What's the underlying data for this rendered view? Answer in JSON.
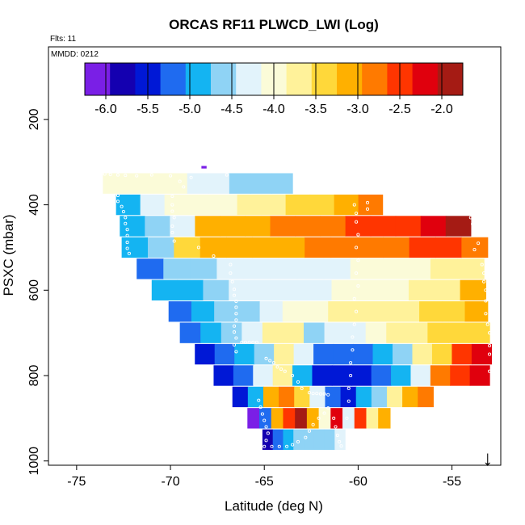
{
  "chart_data": {
    "type": "heatmap",
    "title": "ORCAS RF11 PLWCD_LWI (Log)",
    "flights_label": "Flts: 11",
    "date_label": "MMDD: 0212",
    "xlabel": "Latitude (deg N)",
    "ylabel": "PSXC (mbar)",
    "xlim": [
      -76.5,
      -52.4
    ],
    "ylim": [
      1010,
      30
    ],
    "x_ticks": [
      -75,
      -70,
      -65,
      -60,
      -55
    ],
    "x_tick_labels": [
      "-75",
      "-70",
      "-65",
      "-60",
      "-55"
    ],
    "y_ticks": [
      200,
      400,
      600,
      800,
      1000
    ],
    "y_tick_labels": [
      "200",
      "400",
      "600",
      "800",
      "1000"
    ],
    "colorbar": {
      "min": -6.25,
      "max": -1.75,
      "ticks": [
        -6.0,
        -5.5,
        -5.0,
        -4.5,
        -4.0,
        -3.5,
        -3.0,
        -2.5,
        -2.0
      ],
      "tick_labels": [
        "-6.0",
        "-5.5",
        "-5.0",
        "-4.5",
        "-4.0",
        "-3.5",
        "-3.0",
        "-2.5",
        "-2.0"
      ],
      "colors": [
        "#7a1fe6",
        "#1400b0",
        "#0018d6",
        "#1f6bf0",
        "#14b4f2",
        "#8fd3f5",
        "#e2f3fb",
        "#fbfbd8",
        "#fff29a",
        "#ffd83a",
        "#ffb000",
        "#ff7a00",
        "#ff3500",
        "#e0000d",
        "#a51b14"
      ]
    },
    "bands": [
      {
        "p": 312,
        "dp": 6,
        "lat_start": -68.35,
        "lat_end": -68.1,
        "values": [
          -6.2
        ]
      },
      {
        "p": 350,
        "dp": 48,
        "lat_start": -73.6,
        "lat_end": -63.5,
        "values": [
          -4.0,
          -3.9,
          -4.0,
          -4.1,
          -4.2,
          -4.3,
          -4.5,
          -4.6,
          -4.7
        ]
      },
      {
        "p": 400,
        "dp": 48,
        "lat_start": -72.9,
        "lat_end": -58.7,
        "values": [
          -4.8,
          -4.3,
          -4.1,
          -4.0,
          -3.9,
          -3.8,
          -3.7,
          -3.5,
          -3.3,
          -3.1,
          -2.9
        ]
      },
      {
        "p": 450,
        "dp": 48,
        "lat_start": -72.7,
        "lat_end": -54.0,
        "values": [
          -5.0,
          -4.6,
          -4.3,
          -3.2,
          -3.0,
          -3.0,
          -2.9,
          -2.8,
          -2.7,
          -2.6,
          -2.5,
          -2.4,
          -2.2,
          -2.0
        ]
      },
      {
        "p": 500,
        "dp": 48,
        "lat_start": -72.6,
        "lat_end": -53.1,
        "values": [
          -5.0,
          -4.6,
          -3.4,
          -3.2,
          -3.1,
          -3.0,
          -3.0,
          -2.9,
          -2.8,
          -2.7,
          -2.7,
          -2.6,
          -2.6,
          -2.7
        ]
      },
      {
        "p": 550,
        "dp": 48,
        "lat_start": -71.8,
        "lat_end": -53.3,
        "values": [
          -5.2,
          -4.6,
          -4.5,
          -4.4,
          -4.3,
          -4.3,
          -4.2,
          -4.2,
          -4.1,
          -4.0,
          -3.9,
          -3.8,
          -3.8
        ]
      },
      {
        "p": 600,
        "dp": 48,
        "lat_start": -71.0,
        "lat_end": -53.2,
        "values": [
          -5.0,
          -4.8,
          -4.5,
          -4.4,
          -4.4,
          -4.3,
          -4.2,
          -4.1,
          -4.0,
          -3.9,
          -3.8,
          -3.6,
          -3.2
        ]
      },
      {
        "p": 650,
        "dp": 48,
        "lat_start": -70.1,
        "lat_end": -53.1,
        "values": [
          -5.2,
          -4.9,
          -4.6,
          -4.5,
          -4.3,
          -4.1,
          -3.9,
          -3.8,
          -3.7,
          -3.6,
          -3.6,
          -3.4,
          -3.3,
          -3.0
        ]
      },
      {
        "p": 700,
        "dp": 48,
        "lat_start": -69.5,
        "lat_end": -53.0,
        "values": [
          -5.3,
          -5.0,
          -4.7,
          -4.2,
          -3.8,
          -3.7,
          -4.6,
          -4.3,
          -4.4,
          -4.0,
          -3.8,
          -3.6,
          -3.5,
          -3.5,
          -3.3
        ]
      },
      {
        "p": 750,
        "dp": 48,
        "lat_start": -68.7,
        "lat_end": -52.9,
        "values": [
          -5.4,
          -5.1,
          -4.8,
          -4.5,
          -3.6,
          -4.3,
          -5.3,
          -5.2,
          -5.3,
          -4.8,
          -4.5,
          -3.8,
          -3.3,
          -2.6,
          -2.2
        ]
      },
      {
        "p": 800,
        "dp": 48,
        "lat_start": -67.7,
        "lat_end": -53.0,
        "values": [
          -5.5,
          -5.2,
          -4.3,
          -3.7,
          -4.9,
          -5.6,
          -5.6,
          -5.5,
          -5.2,
          -4.8,
          -4.2,
          -2.9,
          -2.4,
          -2.1
        ]
      },
      {
        "p": 850,
        "dp": 48,
        "lat_start": -66.7,
        "lat_end": -56.0,
        "values": [
          -5.6,
          -5.0,
          -3.2,
          -2.8,
          -3.5,
          -4.3,
          -5.2,
          -5.4,
          -5.0,
          -4.6,
          -3.6,
          -3.0,
          -2.8
        ]
      },
      {
        "p": 900,
        "dp": 48,
        "lat_start": -65.9,
        "lat_end": -58.3,
        "values": [
          -6.1,
          -5.3,
          -3.2,
          -2.4,
          -2.0,
          -3.0,
          -4.0,
          -2.1,
          -4.2,
          -2.4,
          -3.6,
          -3.2
        ]
      },
      {
        "p": 950,
        "dp": 48,
        "lat_start": -65.1,
        "lat_end": -60.7,
        "values": [
          -5.8,
          -5.2,
          -5.0,
          -4.7,
          -4.6,
          -4.5,
          -4.7,
          -4.2
        ]
      }
    ],
    "points": [
      [
        -73.5,
        328
      ],
      [
        -73.2,
        329
      ],
      [
        -72.8,
        330
      ],
      [
        -72.4,
        331
      ],
      [
        -71.8,
        332
      ],
      [
        -71.0,
        330
      ],
      [
        -70.0,
        332
      ],
      [
        -69.5,
        345
      ],
      [
        -69.3,
        358
      ],
      [
        -68.9,
        336
      ],
      [
        -67.0,
        330
      ],
      [
        -72.8,
        378
      ],
      [
        -72.8,
        392
      ],
      [
        -72.6,
        404
      ],
      [
        -72.5,
        416
      ],
      [
        -72.4,
        430
      ],
      [
        -72.4,
        444
      ],
      [
        -72.3,
        458
      ],
      [
        -72.3,
        472
      ],
      [
        -72.3,
        488
      ],
      [
        -72.3,
        502
      ],
      [
        -72.2,
        514
      ],
      [
        -69.9,
        380
      ],
      [
        -69.9,
        400
      ],
      [
        -69.9,
        415
      ],
      [
        -69.8,
        430
      ],
      [
        -69.9,
        450
      ],
      [
        -69.9,
        465
      ],
      [
        -69.8,
        485
      ],
      [
        -68.5,
        500
      ],
      [
        -67.7,
        520
      ],
      [
        -66.8,
        540
      ],
      [
        -66.8,
        560
      ],
      [
        -66.7,
        580
      ],
      [
        -66.6,
        598
      ],
      [
        -66.6,
        612
      ],
      [
        -66.5,
        626
      ],
      [
        -66.5,
        640
      ],
      [
        -66.5,
        655
      ],
      [
        -66.5,
        670
      ],
      [
        -66.6,
        684
      ],
      [
        -66.6,
        698
      ],
      [
        -66.5,
        712
      ],
      [
        -66.6,
        728
      ],
      [
        -66.5,
        744
      ],
      [
        -66.2,
        722
      ],
      [
        -66.0,
        722
      ],
      [
        -65.8,
        722
      ],
      [
        -65.6,
        722
      ],
      [
        -65.4,
        722
      ],
      [
        -60.2,
        400
      ],
      [
        -60.1,
        420
      ],
      [
        -60.1,
        440
      ],
      [
        -60.0,
        470
      ],
      [
        -60.1,
        500
      ],
      [
        -60.0,
        530
      ],
      [
        -60.1,
        560
      ],
      [
        -60.0,
        590
      ],
      [
        -60.2,
        620
      ],
      [
        -60.1,
        650
      ],
      [
        -60.2,
        680
      ],
      [
        -60.3,
        710
      ],
      [
        -60.3,
        740
      ],
      [
        -60.4,
        770
      ],
      [
        -60.4,
        800
      ],
      [
        -60.5,
        830
      ],
      [
        -60.5,
        860
      ],
      [
        -60.6,
        900
      ],
      [
        -59.5,
        395
      ],
      [
        -59.5,
        410
      ],
      [
        -54.0,
        430
      ],
      [
        -53.9,
        445
      ],
      [
        -53.7,
        470
      ],
      [
        -53.6,
        490
      ],
      [
        -53.8,
        505
      ],
      [
        -53.4,
        540
      ],
      [
        -53.3,
        560
      ],
      [
        -53.3,
        580
      ],
      [
        -53.2,
        600
      ],
      [
        -53.2,
        625
      ],
      [
        -53.2,
        655
      ],
      [
        -53.1,
        680
      ],
      [
        -53.0,
        700
      ],
      [
        -53.0,
        730
      ],
      [
        -53.0,
        750
      ],
      [
        -53.0,
        790
      ],
      [
        -64.9,
        760
      ],
      [
        -64.7,
        765
      ],
      [
        -64.5,
        770
      ],
      [
        -64.3,
        780
      ],
      [
        -64.1,
        785
      ],
      [
        -63.9,
        790
      ],
      [
        -63.5,
        800
      ],
      [
        -63.2,
        815
      ],
      [
        -63.0,
        830
      ],
      [
        -62.6,
        840
      ],
      [
        -62.4,
        842
      ],
      [
        -62.2,
        842
      ],
      [
        -62.0,
        843
      ],
      [
        -61.8,
        843
      ],
      [
        -61.6,
        845
      ],
      [
        -65.3,
        858
      ],
      [
        -65.2,
        874
      ],
      [
        -65.1,
        890
      ],
      [
        -65.0,
        905
      ],
      [
        -64.9,
        920
      ],
      [
        -64.8,
        935
      ],
      [
        -64.9,
        952
      ],
      [
        -65.0,
        966
      ],
      [
        -64.6,
        966
      ],
      [
        -64.2,
        966
      ],
      [
        -63.8,
        966
      ],
      [
        -63.5,
        962
      ],
      [
        -63.2,
        955
      ],
      [
        -62.8,
        945
      ],
      [
        -62.6,
        930
      ],
      [
        -62.4,
        915
      ],
      [
        -62.1,
        900
      ],
      [
        -61.8,
        888
      ],
      [
        -61.6,
        876
      ],
      [
        -61.3,
        900
      ],
      [
        -61.2,
        920
      ],
      [
        -61.1,
        940
      ],
      [
        -61.0,
        955
      ],
      [
        -60.9,
        965
      ]
    ],
    "marker": {
      "lat": -53.1,
      "label": "↓"
    }
  }
}
